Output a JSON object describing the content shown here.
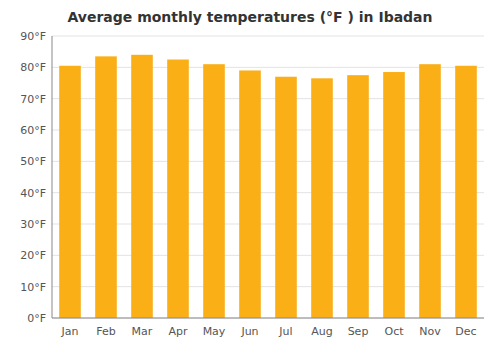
{
  "chart_data": {
    "type": "bar",
    "title": "Average monthly temperatures (°F ) in Ibadan",
    "categories": [
      "Jan",
      "Feb",
      "Mar",
      "Apr",
      "May",
      "Jun",
      "Jul",
      "Aug",
      "Sep",
      "Oct",
      "Nov",
      "Dec"
    ],
    "values": [
      80.5,
      83.5,
      84.0,
      82.5,
      81.0,
      79.0,
      77.0,
      76.5,
      77.5,
      78.5,
      81.0,
      80.5
    ],
    "color": "#FBAF17",
    "ylim": [
      0,
      90
    ],
    "yticks": [
      {
        "value": 0,
        "label": "0°F"
      },
      {
        "value": 10,
        "label": "10°F"
      },
      {
        "value": 20,
        "label": "20°F"
      },
      {
        "value": 30,
        "label": "30°F"
      },
      {
        "value": 40,
        "label": "40°F"
      },
      {
        "value": 50,
        "label": "50°F"
      },
      {
        "value": 60,
        "label": "60°F"
      },
      {
        "value": 70,
        "label": "70°F"
      },
      {
        "value": 80,
        "label": "80°F"
      },
      {
        "value": 90,
        "label": "90°F"
      }
    ],
    "grid": true
  }
}
